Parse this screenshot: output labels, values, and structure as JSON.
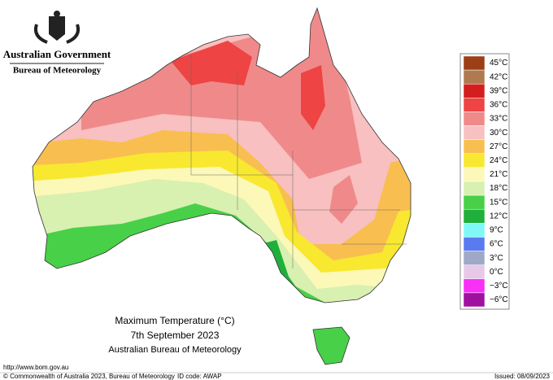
{
  "header": {
    "government": "Australian Government",
    "bureau": "Bureau of Meteorology"
  },
  "map": {
    "title": "Maximum Temperature (°C)",
    "date": "7th September 2023",
    "source": "Australian Bureau of Meteorology"
  },
  "legend": [
    {
      "label": "45°C",
      "color": "#9c3f17"
    },
    {
      "label": "42°C",
      "color": "#b07a50"
    },
    {
      "label": "39°C",
      "color": "#d41e1e"
    },
    {
      "label": "36°C",
      "color": "#ee4444"
    },
    {
      "label": "33°C",
      "color": "#f08a8a"
    },
    {
      "label": "30°C",
      "color": "#f8c0c0"
    },
    {
      "label": "27°C",
      "color": "#f8bf50"
    },
    {
      "label": "24°C",
      "color": "#f8e830"
    },
    {
      "label": "21°C",
      "color": "#fbf8b8"
    },
    {
      "label": "18°C",
      "color": "#d8f0b0"
    },
    {
      "label": "15°C",
      "color": "#48d048"
    },
    {
      "label": "12°C",
      "color": "#1fb03c"
    },
    {
      "label": "9°C",
      "color": "#80f8f8"
    },
    {
      "label": "6°C",
      "color": "#5a7af0"
    },
    {
      "label": "3°C",
      "color": "#a0a8c8"
    },
    {
      "label": "0°C",
      "color": "#e8c8e8"
    },
    {
      "label": "−3°C",
      "color": "#f830f8"
    },
    {
      "label": "−6°C",
      "color": "#a010a0"
    }
  ],
  "footer": {
    "url": "http://www.bom.gov.au",
    "copyright": "© Commonwealth of Australia 2023, Bureau of Meteorology",
    "id_code": "ID code: AWAP",
    "issued": "Issued: 08/09/2023"
  }
}
